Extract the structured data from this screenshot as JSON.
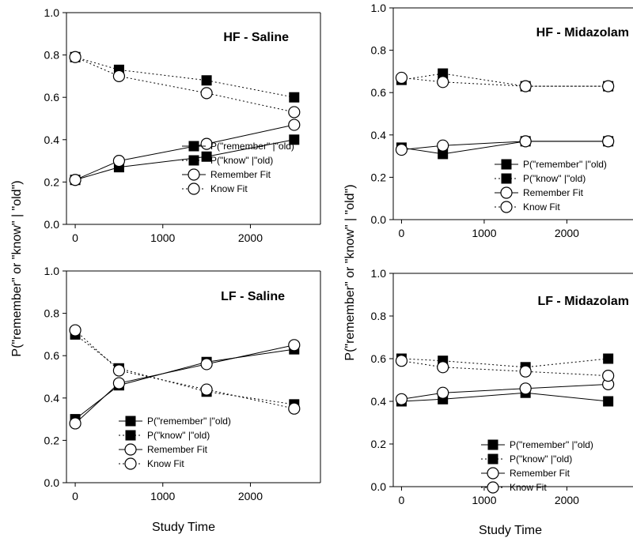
{
  "figure": {
    "ylabel": "P(\"remember\" or \"know\" | \"old\")",
    "xlabel": "Study Time"
  },
  "legend": [
    "P(\"remember\" |\"old)",
    "P(\"know\" |\"old)",
    "Remember Fit",
    "Know Fit"
  ],
  "chart_data": [
    {
      "type": "line",
      "title": "HF - Saline",
      "x": [
        0,
        500,
        1500,
        2500
      ],
      "xlim": [
        -100,
        2800
      ],
      "xticks": [
        0,
        1000,
        2000
      ],
      "ylim": [
        0,
        1
      ],
      "yticks": [
        "0.0",
        "0.2",
        "0.4",
        "0.6",
        "0.8",
        "1.0"
      ],
      "series": [
        {
          "name": "P(\"remember\" |\"old)",
          "values": [
            0.21,
            0.27,
            0.32,
            0.4
          ]
        },
        {
          "name": "P(\"know\" |\"old)",
          "values": [
            0.79,
            0.73,
            0.68,
            0.6
          ]
        },
        {
          "name": "Remember Fit",
          "values": [
            0.21,
            0.3,
            0.38,
            0.47
          ]
        },
        {
          "name": "Know Fit",
          "values": [
            0.79,
            0.7,
            0.62,
            0.53
          ]
        }
      ]
    },
    {
      "type": "line",
      "title": "HF - Midazolam",
      "x": [
        0,
        500,
        1500,
        2500
      ],
      "xlim": [
        -100,
        2800
      ],
      "xticks": [
        0,
        1000,
        2000
      ],
      "ylim": [
        0,
        1
      ],
      "yticks": [
        "0.0",
        "0.2",
        "0.4",
        "0.6",
        "0.8",
        "1.0"
      ],
      "series": [
        {
          "name": "P(\"remember\" |\"old)",
          "values": [
            0.34,
            0.31,
            0.37,
            0.37
          ]
        },
        {
          "name": "P(\"know\" |\"old)",
          "values": [
            0.66,
            0.69,
            0.63,
            0.63
          ]
        },
        {
          "name": "Remember Fit",
          "values": [
            0.33,
            0.35,
            0.37,
            0.37
          ]
        },
        {
          "name": "Know Fit",
          "values": [
            0.67,
            0.65,
            0.63,
            0.63
          ]
        }
      ]
    },
    {
      "type": "line",
      "title": "LF - Saline",
      "x": [
        0,
        500,
        1500,
        2500
      ],
      "xlim": [
        -100,
        2800
      ],
      "xticks": [
        0,
        1000,
        2000
      ],
      "ylim": [
        0,
        1
      ],
      "yticks": [
        "0.0",
        "0.2",
        "0.4",
        "0.6",
        "0.8",
        "1.0"
      ],
      "series": [
        {
          "name": "P(\"remember\" |\"old)",
          "values": [
            0.3,
            0.46,
            0.57,
            0.63
          ]
        },
        {
          "name": "P(\"know\" |\"old)",
          "values": [
            0.7,
            0.54,
            0.43,
            0.37
          ]
        },
        {
          "name": "Remember Fit",
          "values": [
            0.28,
            0.47,
            0.56,
            0.65
          ]
        },
        {
          "name": "Know Fit",
          "values": [
            0.72,
            0.53,
            0.44,
            0.35
          ]
        }
      ]
    },
    {
      "type": "line",
      "title": "LF - Midazolam",
      "x": [
        0,
        500,
        1500,
        2500
      ],
      "xlim": [
        -100,
        2800
      ],
      "xticks": [
        0,
        1000,
        2000
      ],
      "ylim": [
        0,
        1
      ],
      "yticks": [
        "0.0",
        "0.2",
        "0.4",
        "0.6",
        "0.8",
        "1.0"
      ],
      "series": [
        {
          "name": "P(\"remember\" |\"old)",
          "values": [
            0.4,
            0.41,
            0.44,
            0.4
          ]
        },
        {
          "name": "P(\"know\" |\"old)",
          "values": [
            0.6,
            0.59,
            0.56,
            0.6
          ]
        },
        {
          "name": "Remember Fit",
          "values": [
            0.41,
            0.44,
            0.46,
            0.48
          ]
        },
        {
          "name": "Know Fit",
          "values": [
            0.59,
            0.56,
            0.54,
            0.52
          ]
        }
      ]
    }
  ]
}
